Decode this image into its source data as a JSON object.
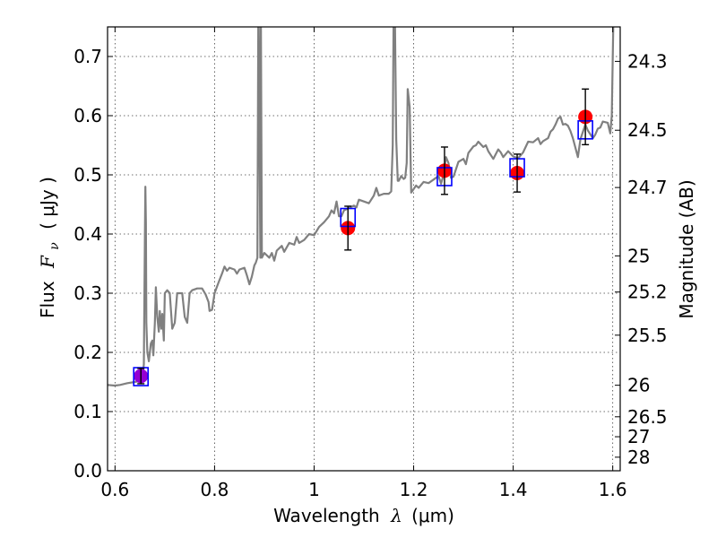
{
  "chart_data": {
    "type": "scatter",
    "xlabel_prefix": "Wavelength",
    "xlabel_symbol": "λ",
    "xlabel_unit": "(μm)",
    "ylabel_prefix": "Flux",
    "ylabel_symbol": "F",
    "ylabel_sub": "ν",
    "ylabel_unit": "( μJy )",
    "y2label": "Magnitude (AB)",
    "xlim": [
      0.585,
      1.615
    ],
    "ylim": [
      0.0,
      0.75
    ],
    "grid": true,
    "x_ticks": [
      {
        "value": 0.6,
        "label": "0.6"
      },
      {
        "value": 0.8,
        "label": "0.8"
      },
      {
        "value": 1.0,
        "label": "1"
      },
      {
        "value": 1.2,
        "label": "1.2"
      },
      {
        "value": 1.4,
        "label": "1.4"
      },
      {
        "value": 1.6,
        "label": "1.6"
      }
    ],
    "y_ticks": [
      {
        "value": 0.0,
        "label": "0.0"
      },
      {
        "value": 0.1,
        "label": "0.1"
      },
      {
        "value": 0.2,
        "label": "0.2"
      },
      {
        "value": 0.3,
        "label": "0.3"
      },
      {
        "value": 0.4,
        "label": "0.4"
      },
      {
        "value": 0.5,
        "label": "0.5"
      },
      {
        "value": 0.6,
        "label": "0.6"
      },
      {
        "value": 0.7,
        "label": "0.7"
      }
    ],
    "y2_ticks": [
      {
        "mag": "24.3",
        "flux": 0.6918
      },
      {
        "mag": "24.5",
        "flux": 0.5754
      },
      {
        "mag": "24.7",
        "flux": 0.4786
      },
      {
        "mag": "25",
        "flux": 0.3631
      },
      {
        "mag": "25.2",
        "flux": 0.302
      },
      {
        "mag": "25.5",
        "flux": 0.2291
      },
      {
        "mag": "26",
        "flux": 0.1445
      },
      {
        "mag": "26.5",
        "flux": 0.0912
      },
      {
        "mag": "27",
        "flux": 0.0575
      },
      {
        "mag": "28",
        "flux": 0.0229
      }
    ],
    "series": [
      {
        "name": "Template spectrum",
        "kind": "line",
        "color": "#808080",
        "points": [
          [
            0.585,
            0.145
          ],
          [
            0.6,
            0.144
          ],
          [
            0.61,
            0.145
          ],
          [
            0.625,
            0.148
          ],
          [
            0.64,
            0.15
          ],
          [
            0.65,
            0.152
          ],
          [
            0.655,
            0.155
          ],
          [
            0.658,
            0.18
          ],
          [
            0.66,
            0.4
          ],
          [
            0.661,
            0.48
          ],
          [
            0.662,
            0.42
          ],
          [
            0.663,
            0.25
          ],
          [
            0.665,
            0.2
          ],
          [
            0.668,
            0.185
          ],
          [
            0.672,
            0.215
          ],
          [
            0.675,
            0.22
          ],
          [
            0.677,
            0.195
          ],
          [
            0.68,
            0.25
          ],
          [
            0.682,
            0.31
          ],
          [
            0.685,
            0.26
          ],
          [
            0.688,
            0.235
          ],
          [
            0.69,
            0.27
          ],
          [
            0.693,
            0.24
          ],
          [
            0.695,
            0.265
          ],
          [
            0.698,
            0.22
          ],
          [
            0.7,
            0.3
          ],
          [
            0.705,
            0.305
          ],
          [
            0.71,
            0.3
          ],
          [
            0.715,
            0.24
          ],
          [
            0.72,
            0.25
          ],
          [
            0.725,
            0.3
          ],
          [
            0.735,
            0.3
          ],
          [
            0.74,
            0.26
          ],
          [
            0.745,
            0.25
          ],
          [
            0.75,
            0.3
          ],
          [
            0.755,
            0.305
          ],
          [
            0.765,
            0.308
          ],
          [
            0.775,
            0.308
          ],
          [
            0.782,
            0.298
          ],
          [
            0.788,
            0.285
          ],
          [
            0.79,
            0.27
          ],
          [
            0.795,
            0.272
          ],
          [
            0.8,
            0.3
          ],
          [
            0.808,
            0.318
          ],
          [
            0.815,
            0.333
          ],
          [
            0.82,
            0.345
          ],
          [
            0.825,
            0.338
          ],
          [
            0.83,
            0.343
          ],
          [
            0.84,
            0.34
          ],
          [
            0.845,
            0.333
          ],
          [
            0.85,
            0.34
          ],
          [
            0.86,
            0.343
          ],
          [
            0.865,
            0.33
          ],
          [
            0.87,
            0.315
          ],
          [
            0.875,
            0.328
          ],
          [
            0.88,
            0.347
          ],
          [
            0.883,
            0.352
          ],
          [
            0.886,
            0.36
          ],
          [
            0.888,
            0.8
          ],
          [
            0.89,
            0.6
          ],
          [
            0.892,
            0.36
          ],
          [
            0.893,
            0.8
          ],
          [
            0.895,
            0.36
          ],
          [
            0.9,
            0.368
          ],
          [
            0.91,
            0.36
          ],
          [
            0.915,
            0.368
          ],
          [
            0.92,
            0.355
          ],
          [
            0.925,
            0.372
          ],
          [
            0.935,
            0.38
          ],
          [
            0.94,
            0.37
          ],
          [
            0.95,
            0.385
          ],
          [
            0.96,
            0.382
          ],
          [
            0.965,
            0.395
          ],
          [
            0.97,
            0.385
          ],
          [
            0.98,
            0.39
          ],
          [
            0.99,
            0.4
          ],
          [
            1.0,
            0.398
          ],
          [
            1.01,
            0.412
          ],
          [
            1.02,
            0.42
          ],
          [
            1.03,
            0.43
          ],
          [
            1.035,
            0.44
          ],
          [
            1.04,
            0.435
          ],
          [
            1.045,
            0.455
          ],
          [
            1.05,
            0.43
          ],
          [
            1.055,
            0.43
          ],
          [
            1.06,
            0.44
          ],
          [
            1.07,
            0.444
          ],
          [
            1.08,
            0.448
          ],
          [
            1.085,
            0.445
          ],
          [
            1.09,
            0.458
          ],
          [
            1.1,
            0.455
          ],
          [
            1.11,
            0.452
          ],
          [
            1.12,
            0.465
          ],
          [
            1.125,
            0.478
          ],
          [
            1.13,
            0.465
          ],
          [
            1.14,
            0.468
          ],
          [
            1.15,
            0.468
          ],
          [
            1.155,
            0.472
          ],
          [
            1.158,
            0.55
          ],
          [
            1.16,
            0.8
          ],
          [
            1.162,
            0.8
          ],
          [
            1.165,
            0.56
          ],
          [
            1.168,
            0.49
          ],
          [
            1.17,
            0.49
          ],
          [
            1.175,
            0.498
          ],
          [
            1.18,
            0.493
          ],
          [
            1.183,
            0.495
          ],
          [
            1.186,
            0.52
          ],
          [
            1.188,
            0.645
          ],
          [
            1.192,
            0.615
          ],
          [
            1.195,
            0.47
          ],
          [
            1.205,
            0.482
          ],
          [
            1.21,
            0.478
          ],
          [
            1.22,
            0.488
          ],
          [
            1.23,
            0.486
          ],
          [
            1.24,
            0.492
          ],
          [
            1.25,
            0.498
          ],
          [
            1.255,
            0.485
          ],
          [
            1.26,
            0.5
          ],
          [
            1.265,
            0.53
          ],
          [
            1.27,
            0.52
          ],
          [
            1.275,
            0.495
          ],
          [
            1.28,
            0.497
          ],
          [
            1.29,
            0.522
          ],
          [
            1.3,
            0.527
          ],
          [
            1.305,
            0.518
          ],
          [
            1.31,
            0.537
          ],
          [
            1.32,
            0.548
          ],
          [
            1.325,
            0.55
          ],
          [
            1.33,
            0.556
          ],
          [
            1.34,
            0.547
          ],
          [
            1.345,
            0.55
          ],
          [
            1.35,
            0.54
          ],
          [
            1.36,
            0.527
          ],
          [
            1.37,
            0.543
          ],
          [
            1.375,
            0.538
          ],
          [
            1.38,
            0.53
          ],
          [
            1.39,
            0.54
          ],
          [
            1.4,
            0.531
          ],
          [
            1.41,
            0.528
          ],
          [
            1.42,
            0.538
          ],
          [
            1.43,
            0.556
          ],
          [
            1.44,
            0.555
          ],
          [
            1.45,
            0.562
          ],
          [
            1.455,
            0.552
          ],
          [
            1.46,
            0.557
          ],
          [
            1.47,
            0.562
          ],
          [
            1.475,
            0.573
          ],
          [
            1.48,
            0.577
          ],
          [
            1.485,
            0.585
          ],
          [
            1.49,
            0.595
          ],
          [
            1.495,
            0.598
          ],
          [
            1.5,
            0.585
          ],
          [
            1.505,
            0.586
          ],
          [
            1.51,
            0.583
          ],
          [
            1.515,
            0.574
          ],
          [
            1.52,
            0.562
          ],
          [
            1.53,
            0.53
          ],
          [
            1.535,
            0.56
          ],
          [
            1.545,
            0.585
          ],
          [
            1.55,
            0.575
          ],
          [
            1.56,
            0.562
          ],
          [
            1.565,
            0.568
          ],
          [
            1.57,
            0.578
          ],
          [
            1.575,
            0.58
          ],
          [
            1.58,
            0.59
          ],
          [
            1.59,
            0.588
          ],
          [
            1.595,
            0.57
          ],
          [
            1.598,
            0.6
          ],
          [
            1.6,
            0.7
          ],
          [
            1.602,
            0.8
          ]
        ]
      },
      {
        "name": "Observed photometry",
        "kind": "points",
        "color": "#ff0000",
        "points": [
          {
            "x": 0.652,
            "y": 0.16,
            "yerr": 0.013,
            "color": "#9400d3"
          },
          {
            "x": 1.068,
            "y": 0.41,
            "yerr": 0.037,
            "color": "#ff0000"
          },
          {
            "x": 1.262,
            "y": 0.507,
            "yerr": 0.04,
            "color": "#ff0000"
          },
          {
            "x": 1.408,
            "y": 0.503,
            "yerr": 0.032,
            "color": "#ff0000"
          },
          {
            "x": 1.545,
            "y": 0.598,
            "yerr": 0.047,
            "color": "#ff0000"
          }
        ]
      },
      {
        "name": "Model synthetic photometry",
        "kind": "squares",
        "color": "#0000ff",
        "points": [
          {
            "x": 0.652,
            "y": 0.159
          },
          {
            "x": 1.068,
            "y": 0.428
          },
          {
            "x": 1.262,
            "y": 0.497
          },
          {
            "x": 1.408,
            "y": 0.512
          },
          {
            "x": 1.545,
            "y": 0.576
          }
        ]
      }
    ]
  }
}
